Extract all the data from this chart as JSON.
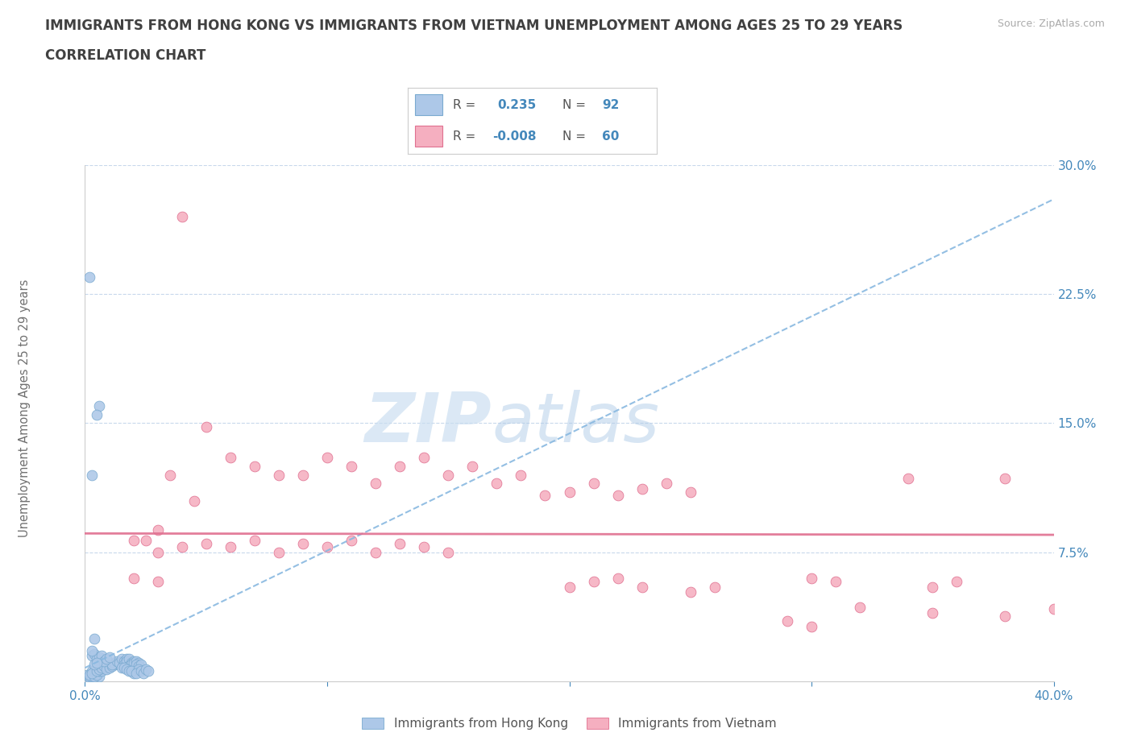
{
  "title_line1": "IMMIGRANTS FROM HONG KONG VS IMMIGRANTS FROM VIETNAM UNEMPLOYMENT AMONG AGES 25 TO 29 YEARS",
  "title_line2": "CORRELATION CHART",
  "source_text": "Source: ZipAtlas.com",
  "ylabel": "Unemployment Among Ages 25 to 29 years",
  "xlim": [
    0.0,
    0.4
  ],
  "ylim": [
    0.0,
    0.3
  ],
  "hk_color": "#adc8e8",
  "vn_color": "#f5afc0",
  "hk_edge": "#7aaad0",
  "vn_edge": "#e07090",
  "trend_hk_color": "#88b8e0",
  "trend_vn_color": "#e07090",
  "R_hk": 0.235,
  "N_hk": 92,
  "R_vn": -0.008,
  "N_vn": 60,
  "legend_label_hk": "Immigrants from Hong Kong",
  "legend_label_vn": "Immigrants from Vietnam",
  "watermark_zip": "ZIP",
  "watermark_atlas": "atlas",
  "background_color": "#ffffff",
  "grid_color": "#c8d8ec",
  "axis_label_color": "#4488bb",
  "source_color": "#aaaaaa",
  "title_color": "#404040",
  "hk_scatter": [
    [
      0.005,
      0.005
    ],
    [
      0.003,
      0.003
    ],
    [
      0.004,
      0.004
    ],
    [
      0.006,
      0.003
    ],
    [
      0.002,
      0.002
    ],
    [
      0.001,
      0.004
    ],
    [
      0.003,
      0.006
    ],
    [
      0.004,
      0.005
    ],
    [
      0.005,
      0.007
    ],
    [
      0.006,
      0.006
    ],
    [
      0.002,
      0.003
    ],
    [
      0.003,
      0.004
    ],
    [
      0.004,
      0.006
    ],
    [
      0.005,
      0.005
    ],
    [
      0.003,
      0.003
    ],
    [
      0.002,
      0.004
    ],
    [
      0.006,
      0.007
    ],
    [
      0.004,
      0.003
    ],
    [
      0.005,
      0.004
    ],
    [
      0.003,
      0.005
    ],
    [
      0.007,
      0.008
    ],
    [
      0.008,
      0.007
    ],
    [
      0.006,
      0.006
    ],
    [
      0.009,
      0.008
    ],
    [
      0.01,
      0.009
    ],
    [
      0.008,
      0.01
    ],
    [
      0.007,
      0.007
    ],
    [
      0.009,
      0.009
    ],
    [
      0.006,
      0.008
    ],
    [
      0.007,
      0.006
    ],
    [
      0.01,
      0.01
    ],
    [
      0.008,
      0.008
    ],
    [
      0.005,
      0.006
    ],
    [
      0.006,
      0.007
    ],
    [
      0.007,
      0.008
    ],
    [
      0.008,
      0.009
    ],
    [
      0.009,
      0.007
    ],
    [
      0.01,
      0.008
    ],
    [
      0.011,
      0.009
    ],
    [
      0.012,
      0.01
    ],
    [
      0.013,
      0.011
    ],
    [
      0.014,
      0.01
    ],
    [
      0.015,
      0.012
    ],
    [
      0.012,
      0.011
    ],
    [
      0.011,
      0.01
    ],
    [
      0.013,
      0.012
    ],
    [
      0.014,
      0.011
    ],
    [
      0.015,
      0.013
    ],
    [
      0.016,
      0.012
    ],
    [
      0.017,
      0.013
    ],
    [
      0.018,
      0.011
    ],
    [
      0.016,
      0.01
    ],
    [
      0.017,
      0.012
    ],
    [
      0.018,
      0.013
    ],
    [
      0.019,
      0.011
    ],
    [
      0.02,
      0.012
    ],
    [
      0.018,
      0.009
    ],
    [
      0.019,
      0.01
    ],
    [
      0.02,
      0.011
    ],
    [
      0.021,
      0.012
    ],
    [
      0.022,
      0.011
    ],
    [
      0.021,
      0.01
    ],
    [
      0.022,
      0.009
    ],
    [
      0.023,
      0.01
    ],
    [
      0.003,
      0.015
    ],
    [
      0.004,
      0.016
    ],
    [
      0.005,
      0.013
    ],
    [
      0.006,
      0.014
    ],
    [
      0.007,
      0.015
    ],
    [
      0.008,
      0.012
    ],
    [
      0.009,
      0.013
    ],
    [
      0.01,
      0.014
    ],
    [
      0.004,
      0.01
    ],
    [
      0.005,
      0.011
    ],
    [
      0.003,
      0.018
    ],
    [
      0.002,
      0.235
    ],
    [
      0.004,
      0.025
    ],
    [
      0.006,
      0.16
    ],
    [
      0.005,
      0.155
    ],
    [
      0.003,
      0.12
    ],
    [
      0.015,
      0.008
    ],
    [
      0.016,
      0.008
    ],
    [
      0.017,
      0.007
    ],
    [
      0.018,
      0.006
    ],
    [
      0.02,
      0.005
    ],
    [
      0.019,
      0.006
    ],
    [
      0.022,
      0.007
    ],
    [
      0.021,
      0.005
    ],
    [
      0.023,
      0.006
    ],
    [
      0.024,
      0.005
    ],
    [
      0.025,
      0.007
    ],
    [
      0.026,
      0.006
    ]
  ],
  "vn_scatter": [
    [
      0.04,
      0.27
    ],
    [
      0.05,
      0.148
    ],
    [
      0.03,
      0.088
    ],
    [
      0.025,
      0.082
    ],
    [
      0.035,
      0.12
    ],
    [
      0.045,
      0.105
    ],
    [
      0.06,
      0.13
    ],
    [
      0.07,
      0.125
    ],
    [
      0.08,
      0.12
    ],
    [
      0.09,
      0.12
    ],
    [
      0.1,
      0.13
    ],
    [
      0.11,
      0.125
    ],
    [
      0.12,
      0.115
    ],
    [
      0.13,
      0.125
    ],
    [
      0.14,
      0.13
    ],
    [
      0.15,
      0.12
    ],
    [
      0.16,
      0.125
    ],
    [
      0.17,
      0.115
    ],
    [
      0.18,
      0.12
    ],
    [
      0.19,
      0.108
    ],
    [
      0.2,
      0.11
    ],
    [
      0.21,
      0.115
    ],
    [
      0.22,
      0.108
    ],
    [
      0.23,
      0.112
    ],
    [
      0.24,
      0.115
    ],
    [
      0.25,
      0.11
    ],
    [
      0.34,
      0.118
    ],
    [
      0.38,
      0.118
    ],
    [
      0.02,
      0.082
    ],
    [
      0.03,
      0.075
    ],
    [
      0.04,
      0.078
    ],
    [
      0.05,
      0.08
    ],
    [
      0.06,
      0.078
    ],
    [
      0.07,
      0.082
    ],
    [
      0.08,
      0.075
    ],
    [
      0.09,
      0.08
    ],
    [
      0.1,
      0.078
    ],
    [
      0.11,
      0.082
    ],
    [
      0.12,
      0.075
    ],
    [
      0.13,
      0.08
    ],
    [
      0.14,
      0.078
    ],
    [
      0.15,
      0.075
    ],
    [
      0.2,
      0.055
    ],
    [
      0.21,
      0.058
    ],
    [
      0.22,
      0.06
    ],
    [
      0.23,
      0.055
    ],
    [
      0.3,
      0.06
    ],
    [
      0.31,
      0.058
    ],
    [
      0.35,
      0.055
    ],
    [
      0.36,
      0.058
    ],
    [
      0.02,
      0.06
    ],
    [
      0.03,
      0.058
    ],
    [
      0.25,
      0.052
    ],
    [
      0.26,
      0.055
    ],
    [
      0.4,
      0.042
    ],
    [
      0.38,
      0.038
    ],
    [
      0.35,
      0.04
    ],
    [
      0.32,
      0.043
    ],
    [
      0.3,
      0.032
    ],
    [
      0.29,
      0.035
    ]
  ]
}
